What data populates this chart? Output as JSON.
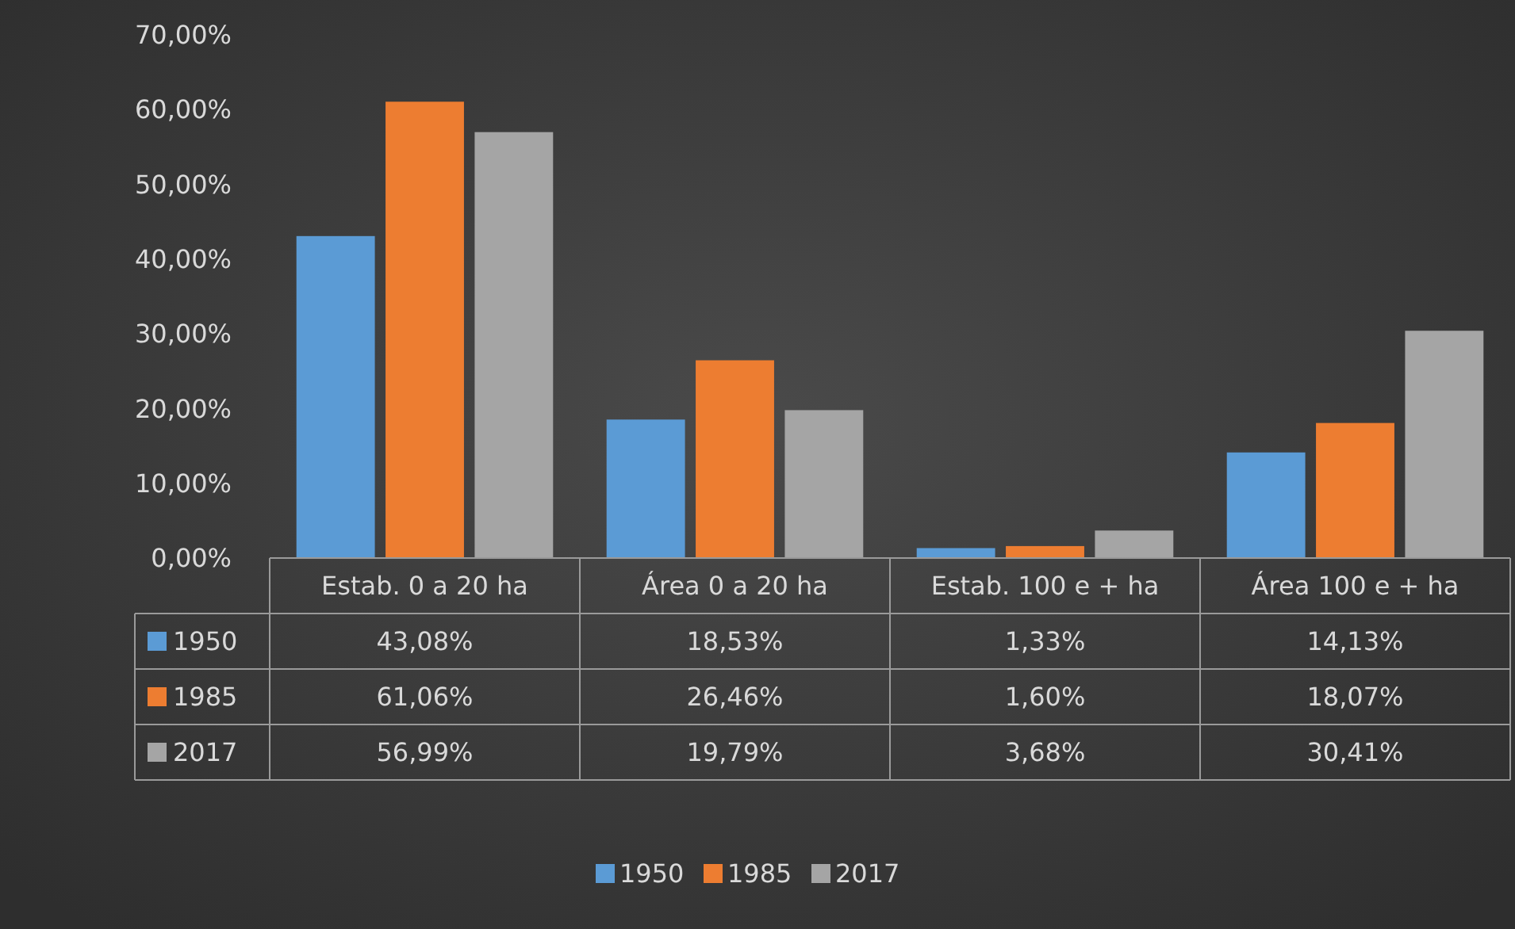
{
  "chart_data": {
    "type": "bar",
    "categories": [
      "Estab. 0 a 20 ha",
      "Área 0 a 20 ha",
      "Estab. 100 e + ha",
      "Área 100 e + ha"
    ],
    "series": [
      {
        "name": "1950",
        "color": "#5b9bd5",
        "values": [
          43.08,
          18.53,
          1.33,
          14.13
        ],
        "value_labels": [
          "43,08%",
          "18,53%",
          "1,33%",
          "14,13%"
        ]
      },
      {
        "name": "1985",
        "color": "#ed7d31",
        "values": [
          61.06,
          26.46,
          1.6,
          18.07
        ],
        "value_labels": [
          "61,06%",
          "26,46%",
          "1,60%",
          "18,07%"
        ]
      },
      {
        "name": "2017",
        "color": "#a5a5a5",
        "values": [
          56.99,
          19.79,
          3.68,
          30.41
        ],
        "value_labels": [
          "56,99%",
          "19,79%",
          "3,68%",
          "30,41%"
        ]
      }
    ],
    "ylim": [
      0,
      70
    ],
    "yticks": [
      {
        "value": 0,
        "label": "0,00%"
      },
      {
        "value": 10,
        "label": "10,00%"
      },
      {
        "value": 20,
        "label": "20,00%"
      },
      {
        "value": 30,
        "label": "30,00%"
      },
      {
        "value": 40,
        "label": "40,00%"
      },
      {
        "value": 50,
        "label": "50,00%"
      },
      {
        "value": 60,
        "label": "60,00%"
      },
      {
        "value": 70,
        "label": "70,00%"
      }
    ],
    "legend": "bottom"
  }
}
